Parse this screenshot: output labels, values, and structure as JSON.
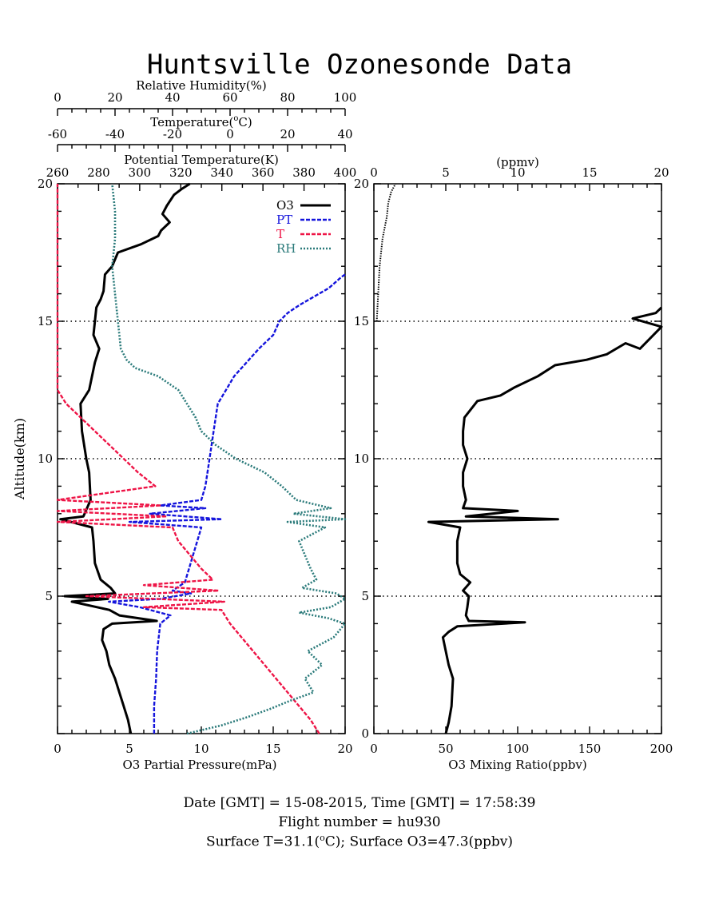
{
  "title": "Huntsville Ozonesonde Data",
  "colors": {
    "o3": "#000000",
    "pt": "#1414dc",
    "t": "#ee1446",
    "rh": "#2a7a7a"
  },
  "legend": [
    "O3",
    "PT",
    "T",
    "RH"
  ],
  "footer": {
    "line1": "Date [GMT] = 15-08-2015,  Time [GMT] = 17:58:39",
    "line2": "Flight number = hu930",
    "line3_prefix": "Surface T=31.1(",
    "line3_suffix": "C); Surface O3=47.3(ppbv)"
  },
  "chart_data": [
    {
      "type": "line",
      "panel": "left",
      "ylabel": "Altitude(km)",
      "ylim": [
        0,
        20
      ],
      "yticks": [
        "5",
        "10",
        "15",
        "20"
      ],
      "reference_lines_km": [
        5,
        10,
        15
      ],
      "axes": [
        {
          "id": "o3pp",
          "label": "O3 Partial Pressure(mPa)",
          "range": [
            0,
            20
          ],
          "ticks": [
            "0",
            "5",
            "10",
            "15",
            "20"
          ]
        },
        {
          "id": "rh",
          "label": "Relative Humidity(%)",
          "range": [
            0,
            100
          ],
          "ticks": [
            "0",
            "20",
            "40",
            "60",
            "80",
            "100"
          ]
        },
        {
          "id": "temp",
          "label_prefix": "Temperature(",
          "label_suffix": "C)",
          "range": [
            -60,
            40
          ],
          "ticks": [
            "-60",
            "-40",
            "-20",
            "0",
            "20",
            "40"
          ]
        },
        {
          "id": "pt",
          "label": "Potential Temperature(K)",
          "range": [
            260,
            400
          ],
          "ticks": [
            "260",
            "280",
            "300",
            "320",
            "340",
            "360",
            "380",
            "400"
          ]
        }
      ],
      "series": [
        {
          "name": "O3",
          "axis": "o3pp",
          "data": [
            [
              5.1,
              0
            ],
            [
              4.9,
              0.5
            ],
            [
              4.6,
              1
            ],
            [
              4.3,
              1.5
            ],
            [
              4,
              2
            ],
            [
              3.6,
              2.5
            ],
            [
              3.4,
              3
            ],
            [
              3.1,
              3.4
            ],
            [
              3.2,
              3.8
            ],
            [
              3.8,
              4
            ],
            [
              6.9,
              4.1
            ],
            [
              4.3,
              4.3
            ],
            [
              3.6,
              4.5
            ],
            [
              1,
              4.8
            ],
            [
              3.5,
              4.9
            ],
            [
              0.5,
              5
            ],
            [
              4,
              5.1
            ],
            [
              3.7,
              5.3
            ],
            [
              3,
              5.6
            ],
            [
              2.6,
              6.2
            ],
            [
              2.5,
              7
            ],
            [
              2.4,
              7.5
            ],
            [
              0.2,
              7.8
            ],
            [
              1.8,
              7.9
            ],
            [
              2.3,
              8.5
            ],
            [
              2.2,
              9.5
            ],
            [
              2,
              10
            ],
            [
              1.7,
              11
            ],
            [
              1.6,
              12
            ],
            [
              2.2,
              12.5
            ],
            [
              2.6,
              13.5
            ],
            [
              2.9,
              14
            ],
            [
              2.5,
              14.5
            ],
            [
              2.6,
              15
            ],
            [
              2.7,
              15.5
            ],
            [
              3,
              15.8
            ],
            [
              3.2,
              16.1
            ],
            [
              3.3,
              16.7
            ],
            [
              3.8,
              17
            ],
            [
              4.2,
              17.5
            ],
            [
              5.8,
              17.8
            ],
            [
              7,
              18.1
            ],
            [
              7.2,
              18.3
            ],
            [
              7.8,
              18.6
            ],
            [
              7.3,
              18.9
            ],
            [
              7.6,
              19.2
            ],
            [
              8.1,
              19.6
            ],
            [
              8.6,
              19.8
            ],
            [
              9.2,
              20
            ]
          ]
        },
        {
          "name": "PT",
          "axis": "pt",
          "data": [
            [
              307,
              0
            ],
            [
              307,
              1
            ],
            [
              308,
              2
            ],
            [
              308.5,
              3
            ],
            [
              310,
              4
            ],
            [
              315,
              4.3
            ],
            [
              300,
              4.6
            ],
            [
              285,
              4.8
            ],
            [
              310,
              4.9
            ],
            [
              325,
              5.1
            ],
            [
              316,
              5.2
            ],
            [
              322,
              5.5
            ],
            [
              324,
              6
            ],
            [
              326,
              6.5
            ],
            [
              328,
              7
            ],
            [
              330,
              7.5
            ],
            [
              295,
              7.7
            ],
            [
              340,
              7.8
            ],
            [
              305,
              8
            ],
            [
              332,
              8.2
            ],
            [
              310,
              8.3
            ],
            [
              330,
              8.5
            ],
            [
              332,
              9
            ],
            [
              334,
              10
            ],
            [
              336,
              11
            ],
            [
              338,
              12
            ],
            [
              342,
              12.5
            ],
            [
              346,
              13
            ],
            [
              352,
              13.5
            ],
            [
              358,
              14
            ],
            [
              365,
              14.5
            ],
            [
              368,
              15
            ],
            [
              372,
              15.3
            ],
            [
              378,
              15.6
            ],
            [
              385,
              15.9
            ],
            [
              392,
              16.2
            ],
            [
              398,
              16.6
            ],
            [
              400,
              16.7
            ]
          ]
        },
        {
          "name": "T",
          "axis": "temp",
          "data": [
            [
              31,
              0
            ],
            [
              28,
              0.5
            ],
            [
              24,
              1
            ],
            [
              20,
              1.5
            ],
            [
              16,
              2
            ],
            [
              12,
              2.5
            ],
            [
              8,
              3
            ],
            [
              4,
              3.5
            ],
            [
              0,
              4
            ],
            [
              -3,
              4.5
            ],
            [
              -30,
              4.6
            ],
            [
              -2,
              4.8
            ],
            [
              -50,
              5
            ],
            [
              -4,
              5.2
            ],
            [
              -30,
              5.4
            ],
            [
              -6,
              5.6
            ],
            [
              -10,
              6
            ],
            [
              -14,
              6.5
            ],
            [
              -18,
              7
            ],
            [
              -20,
              7.5
            ],
            [
              -80,
              7.7
            ],
            [
              -22,
              7.9
            ],
            [
              -70,
              8.1
            ],
            [
              -24,
              8.3
            ],
            [
              -60,
              8.5
            ],
            [
              -26,
              9
            ],
            [
              -32,
              9.5
            ],
            [
              -37,
              10
            ],
            [
              -42,
              10.5
            ],
            [
              -47,
              11
            ],
            [
              -52,
              11.5
            ],
            [
              -57,
              12
            ],
            [
              -60,
              12.5
            ],
            [
              -61,
              13
            ],
            [
              -62,
              14
            ],
            [
              -62.5,
              15
            ],
            [
              -64,
              16
            ],
            [
              -63,
              17
            ],
            [
              -65,
              17.5
            ],
            [
              -64,
              18
            ],
            [
              -62,
              19
            ],
            [
              -62,
              19.5
            ],
            [
              -61,
              20
            ]
          ]
        },
        {
          "name": "RH",
          "axis": "rh",
          "data": [
            [
              45,
              0
            ],
            [
              57,
              0.3
            ],
            [
              66,
              0.6
            ],
            [
              74,
              0.9
            ],
            [
              81,
              1.2
            ],
            [
              89,
              1.5
            ],
            [
              86,
              2
            ],
            [
              92,
              2.5
            ],
            [
              87,
              3
            ],
            [
              96,
              3.5
            ],
            [
              100,
              4
            ],
            [
              94,
              4.2
            ],
            [
              84,
              4.4
            ],
            [
              95,
              4.6
            ],
            [
              100,
              4.9
            ],
            [
              97,
              5.1
            ],
            [
              85,
              5.3
            ],
            [
              90,
              5.6
            ],
            [
              88,
              6
            ],
            [
              86,
              6.5
            ],
            [
              84,
              7
            ],
            [
              93,
              7.5
            ],
            [
              80,
              7.7
            ],
            [
              100,
              7.8
            ],
            [
              82,
              8
            ],
            [
              95,
              8.2
            ],
            [
              83,
              8.5
            ],
            [
              78,
              9
            ],
            [
              72,
              9.5
            ],
            [
              62,
              10
            ],
            [
              55,
              10.5
            ],
            [
              50,
              11
            ],
            [
              48,
              11.5
            ],
            [
              45,
              12
            ],
            [
              42,
              12.5
            ],
            [
              35,
              13
            ],
            [
              27,
              13.3
            ],
            [
              24,
              13.6
            ],
            [
              22,
              14
            ],
            [
              21,
              15
            ],
            [
              20,
              16
            ],
            [
              19,
              17
            ],
            [
              20,
              18
            ],
            [
              20,
              19
            ],
            [
              19,
              20
            ]
          ]
        }
      ]
    },
    {
      "type": "line",
      "panel": "right",
      "ylim": [
        0,
        20
      ],
      "yticks": [
        "0",
        "5",
        "10",
        "15",
        "20"
      ],
      "reference_lines_km": [
        5,
        10,
        15
      ],
      "axes": [
        {
          "id": "ppbv",
          "label": "O3 Mixing Ratio(ppbv)",
          "range": [
            0,
            200
          ],
          "ticks": [
            "0",
            "50",
            "100",
            "150",
            "200"
          ]
        },
        {
          "id": "ppmv",
          "label": "(ppmv)",
          "range": [
            0,
            20
          ],
          "ticks": [
            "0",
            "5",
            "10",
            "15",
            "20"
          ]
        }
      ],
      "series": [
        {
          "name": "O3 Mixing Ratio",
          "axis": "ppbv",
          "data": [
            [
              50,
              0
            ],
            [
              52,
              0.4
            ],
            [
              54,
              1
            ],
            [
              55,
              2
            ],
            [
              52,
              2.5
            ],
            [
              50,
              3
            ],
            [
              48,
              3.5
            ],
            [
              52,
              3.7
            ],
            [
              58,
              3.9
            ],
            [
              105,
              4.05
            ],
            [
              66,
              4.1
            ],
            [
              64,
              4.3
            ],
            [
              65,
              4.6
            ],
            [
              66,
              5
            ],
            [
              62,
              5.2
            ],
            [
              67,
              5.5
            ],
            [
              60,
              5.8
            ],
            [
              58,
              6.2
            ],
            [
              58,
              7
            ],
            [
              60,
              7.5
            ],
            [
              38,
              7.7
            ],
            [
              128,
              7.8
            ],
            [
              64,
              7.9
            ],
            [
              100,
              8.1
            ],
            [
              62,
              8.2
            ],
            [
              64,
              8.5
            ],
            [
              62,
              9
            ],
            [
              62,
              9.5
            ],
            [
              65,
              10
            ],
            [
              62,
              10.5
            ],
            [
              62,
              11
            ],
            [
              63,
              11.5
            ],
            [
              72,
              12.1
            ],
            [
              88,
              12.3
            ],
            [
              98,
              12.6
            ],
            [
              114,
              13
            ],
            [
              126,
              13.4
            ],
            [
              148,
              13.6
            ],
            [
              162,
              13.8
            ],
            [
              175,
              14.2
            ],
            [
              185,
              14
            ],
            [
              200,
              14.8
            ],
            [
              180,
              15.1
            ],
            [
              196,
              15.3
            ],
            [
              200,
              15.5
            ]
          ]
        },
        {
          "name": "O3 ppmv",
          "axis": "ppmv",
          "data": [
            [
              0.2,
              15
            ],
            [
              0.3,
              16
            ],
            [
              0.4,
              17
            ],
            [
              0.6,
              18
            ],
            [
              0.9,
              18.8
            ],
            [
              1,
              19.3
            ],
            [
              1.2,
              19.7
            ],
            [
              1.5,
              20
            ]
          ]
        }
      ]
    }
  ]
}
